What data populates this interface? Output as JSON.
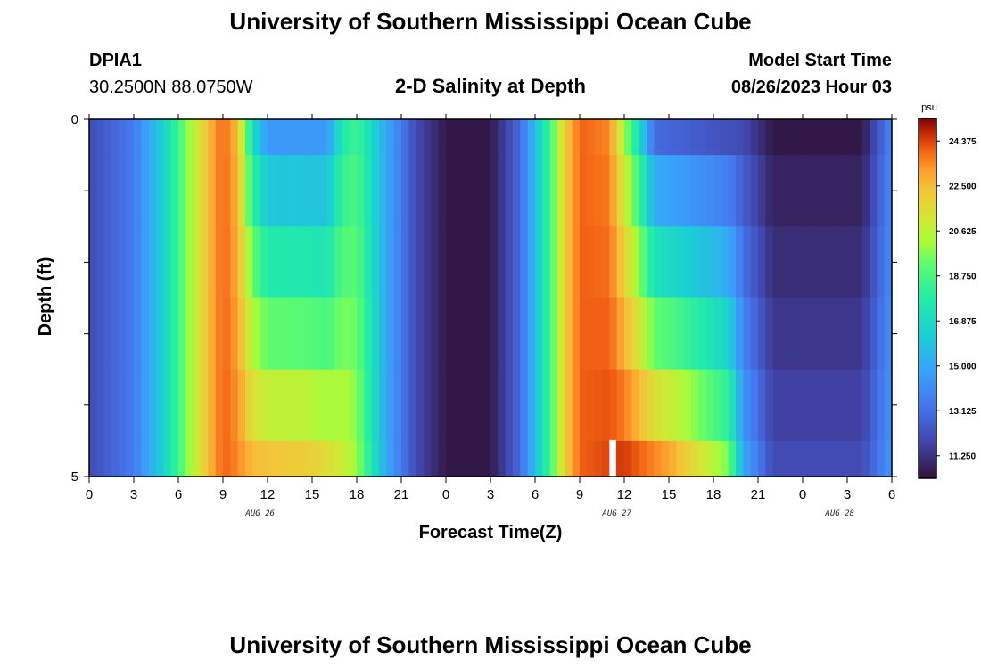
{
  "header": {
    "title": "University of Southern Mississippi Ocean Cube",
    "station_id": "DPIA1",
    "coordinates": "30.2500N  88.0750W",
    "plot_title": "2-D Salinity at Depth",
    "model_start_label": "Model Start Time",
    "model_start_value": "08/26/2023 Hour 03"
  },
  "footer": {
    "title": "University of Southern Mississippi Ocean Cube"
  },
  "chart_data": {
    "type": "heatmap",
    "title": "2-D Salinity at Depth",
    "xlabel": "Forecast Time(Z)",
    "ylabel": "Depth (ft)",
    "x_tick_labels": [
      "0",
      "3",
      "6",
      "9",
      "12",
      "15",
      "18",
      "21",
      "0",
      "3",
      "6",
      "9",
      "12",
      "15",
      "18",
      "21",
      "0",
      "3",
      "6"
    ],
    "x_date_labels": [
      {
        "label": "AUG 26",
        "hour": 11.5
      },
      {
        "label": "AUG 27",
        "hour": 35.5
      },
      {
        "label": "AUG 28",
        "hour": 50.5
      }
    ],
    "y_tick_labels": [
      "0",
      "5"
    ],
    "ylim": [
      0,
      5
    ],
    "xlim_hours": [
      0,
      54
    ],
    "depth_layers_ft": [
      {
        "top": 0.0,
        "bottom": 0.5
      },
      {
        "top": 0.5,
        "bottom": 1.5
      },
      {
        "top": 1.5,
        "bottom": 2.5
      },
      {
        "top": 2.5,
        "bottom": 3.5
      },
      {
        "top": 3.5,
        "bottom": 4.5
      },
      {
        "top": 4.5,
        "bottom": 5.0
      }
    ],
    "surface_salinity_by_hour": [
      {
        "hour": 0,
        "value": 12.0
      },
      {
        "hour": 3,
        "value": 13.5
      },
      {
        "hour": 5,
        "value": 16.5
      },
      {
        "hour": 7,
        "value": 20.5
      },
      {
        "hour": 8,
        "value": 22.5
      },
      {
        "hour": 9,
        "value": 24.0
      },
      {
        "hour": 10,
        "value": 22.5
      },
      {
        "hour": 11,
        "value": 17.0
      },
      {
        "hour": 12,
        "value": 14.5
      },
      {
        "hour": 16,
        "value": 14.5
      },
      {
        "hour": 17,
        "value": 17.5
      },
      {
        "hour": 18,
        "value": 18.5
      },
      {
        "hour": 20,
        "value": 15.0
      },
      {
        "hour": 22,
        "value": 12.0
      },
      {
        "hour": 24,
        "value": 10.5
      },
      {
        "hour": 27,
        "value": 10.5
      },
      {
        "hour": 29,
        "value": 13.0
      },
      {
        "hour": 31,
        "value": 18.5
      },
      {
        "hour": 32,
        "value": 22.0
      },
      {
        "hour": 33,
        "value": 24.0
      },
      {
        "hour": 35,
        "value": 23.5
      },
      {
        "hour": 37,
        "value": 17.0
      },
      {
        "hour": 38,
        "value": 13.0
      },
      {
        "hour": 44,
        "value": 12.0
      },
      {
        "hour": 46,
        "value": 10.5
      },
      {
        "hour": 52,
        "value": 10.5
      },
      {
        "hour": 54,
        "value": 14.0
      }
    ],
    "bottom_salinity_by_hour": [
      {
        "hour": 0,
        "value": 12.0
      },
      {
        "hour": 3,
        "value": 13.5
      },
      {
        "hour": 5,
        "value": 16.5
      },
      {
        "hour": 7,
        "value": 20.5
      },
      {
        "hour": 8,
        "value": 22.5
      },
      {
        "hour": 9,
        "value": 24.0
      },
      {
        "hour": 10,
        "value": 23.5
      },
      {
        "hour": 11,
        "value": 22.5
      },
      {
        "hour": 15,
        "value": 22.0
      },
      {
        "hour": 17,
        "value": 21.0
      },
      {
        "hour": 18,
        "value": 20.0
      },
      {
        "hour": 20,
        "value": 15.0
      },
      {
        "hour": 22,
        "value": 12.0
      },
      {
        "hour": 24,
        "value": 10.5
      },
      {
        "hour": 27,
        "value": 10.5
      },
      {
        "hour": 29,
        "value": 13.0
      },
      {
        "hour": 31,
        "value": 18.5
      },
      {
        "hour": 32,
        "value": 22.0
      },
      {
        "hour": 33,
        "value": 24.0
      },
      {
        "hour": 36,
        "value": 24.5
      },
      {
        "hour": 39,
        "value": 23.0
      },
      {
        "hour": 42,
        "value": 20.5
      },
      {
        "hour": 43,
        "value": 19.5
      },
      {
        "hour": 44,
        "value": 15.0
      },
      {
        "hour": 46,
        "value": 12.0
      },
      {
        "hour": 52,
        "value": 12.0
      },
      {
        "hour": 54,
        "value": 14.5
      }
    ],
    "missing_data_hour": 35,
    "colorbar": {
      "unit": "psu",
      "ticks": [
        "24.375",
        "22.500",
        "20.625",
        "18.750",
        "16.875",
        "15.000",
        "13.125",
        "11.250"
      ],
      "tick_values": [
        24.375,
        22.5,
        20.625,
        18.75,
        16.875,
        15.0,
        13.125,
        11.25
      ],
      "range": [
        10.3125,
        25.3125
      ]
    }
  }
}
